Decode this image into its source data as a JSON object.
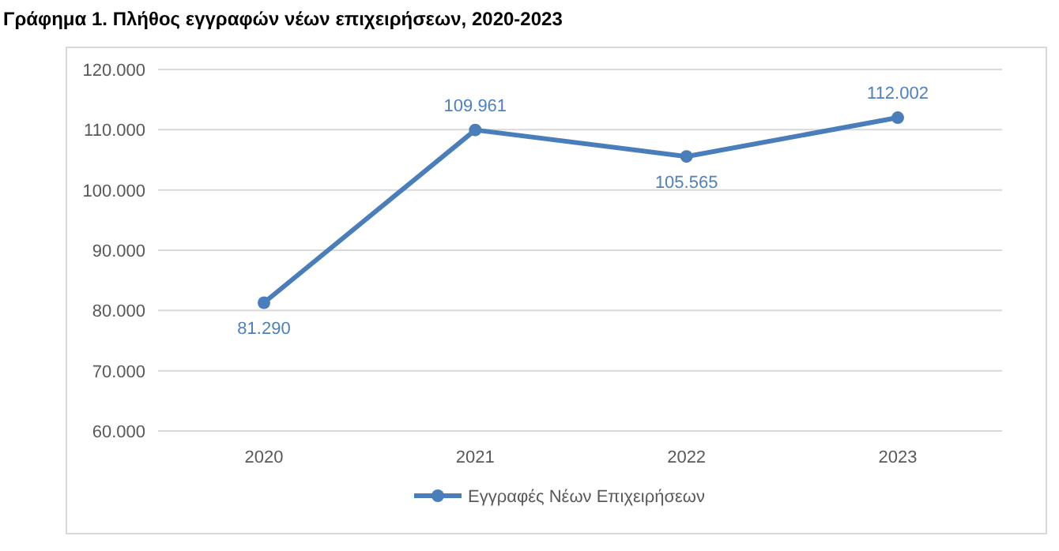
{
  "chart_data": {
    "type": "line",
    "title": "Γράφημα 1. Πλήθος εγγραφών νέων επιχειρήσεων, 2020-2023",
    "categories": [
      "2020",
      "2021",
      "2022",
      "2023"
    ],
    "series": [
      {
        "name": "Εγγραφές Νέων Επιχειρήσεων",
        "color": "#4a7ebb",
        "values": [
          81290,
          109961,
          105565,
          112002
        ]
      }
    ],
    "value_labels": [
      "81.290",
      "109.961",
      "105.565",
      "112.002"
    ],
    "ylim": [
      60000,
      120000
    ],
    "yticks": [
      {
        "value": 60000,
        "label": "60.000"
      },
      {
        "value": 70000,
        "label": "70.000"
      },
      {
        "value": 80000,
        "label": "80.000"
      },
      {
        "value": 90000,
        "label": "90.000"
      },
      {
        "value": 100000,
        "label": "100.000"
      },
      {
        "value": 110000,
        "label": "110.000"
      },
      {
        "value": 120000,
        "label": "120.000"
      }
    ],
    "grid": "y",
    "legend": "bottom",
    "marker": "circle",
    "line_style": "solid"
  }
}
